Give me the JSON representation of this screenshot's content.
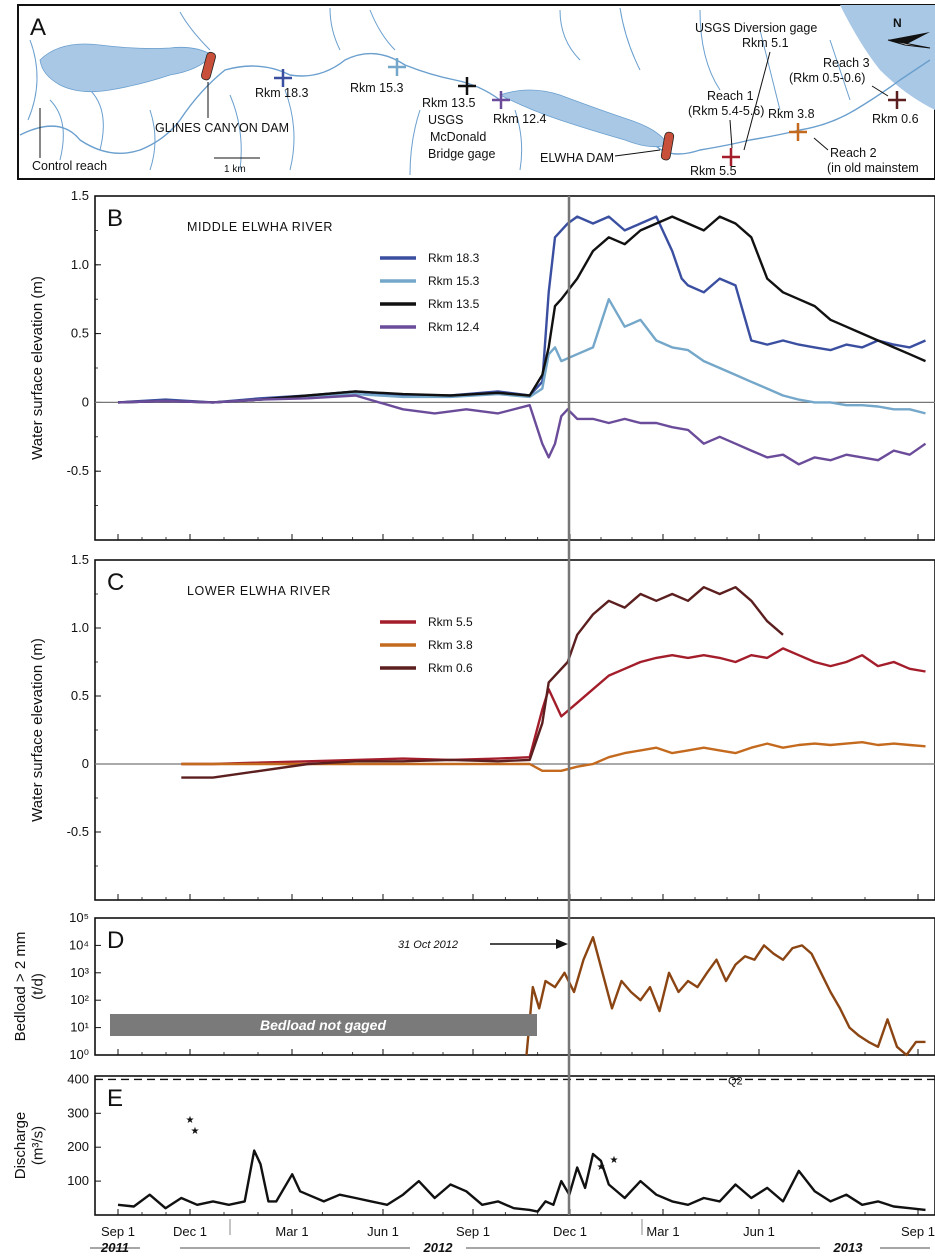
{
  "map": {
    "letter": "A",
    "north": "N",
    "scale_label": "1 km",
    "labels": {
      "glines": "GLINES CANYON DAM",
      "elwha_dam": "ELWHA DAM",
      "control": "Control reach",
      "usgs_mcdonald": [
        "USGS",
        "McDonald",
        "Bridge gage"
      ],
      "usgs_diversion": [
        "USGS Diversion gage",
        "Rkm 5.1"
      ],
      "reach1": [
        "Reach 1",
        "(Rkm 5.4-5.6)"
      ],
      "reach2": [
        "Reach 2",
        "(in old mainstem"
      ],
      "reach3": [
        "Reach 3",
        "(Rkm 0.5-0.6)"
      ],
      "sites": [
        "Rkm 18.3",
        "Rkm 15.3",
        "Rkm 13.5",
        "Rkm 12.4",
        "Rkm 5.5",
        "Rkm 3.8",
        "Rkm 0.6"
      ]
    },
    "colors": {
      "water": "#a9c8e6",
      "river": "#6a9fce",
      "dam": "#c8503a"
    }
  },
  "x_axis": {
    "ticks": [
      "Sep 1",
      "Dec 1",
      "Mar 1",
      "Jun 1",
      "Sep 1",
      "Dec 1",
      "Mar 1",
      "Jun 1",
      "Sep 1"
    ],
    "years": [
      "2011",
      "2012",
      "2013"
    ]
  },
  "chart_data": [
    {
      "panel": "B",
      "type": "line",
      "title": "MIDDLE ELWHA RIVER",
      "ylabel": "Water surface elevation (m)",
      "ylim": [
        -1.0,
        1.5
      ],
      "yticks": [
        "1.5",
        "1.0",
        "0.5",
        "0",
        "-0.5"
      ],
      "legend": "top-center",
      "series": [
        {
          "name": "Rkm 18.3",
          "color": "#3b4fa1",
          "x": [
            0,
            30,
            60,
            90,
            120,
            150,
            180,
            210,
            240,
            260,
            268,
            272,
            276,
            280,
            284,
            290,
            300,
            310,
            320,
            330,
            340,
            350,
            356,
            360,
            370,
            380,
            390,
            400,
            410,
            420,
            430,
            440,
            450,
            460,
            470,
            480,
            490,
            500,
            510
          ],
          "y": [
            0.0,
            0.02,
            0.0,
            0.03,
            0.05,
            0.08,
            0.05,
            0.05,
            0.08,
            0.05,
            0.15,
            0.8,
            1.2,
            1.25,
            1.3,
            1.35,
            1.3,
            1.35,
            1.25,
            1.3,
            1.35,
            1.1,
            0.9,
            0.85,
            0.8,
            0.9,
            0.85,
            0.45,
            0.42,
            0.45,
            0.42,
            0.4,
            0.38,
            0.42,
            0.4,
            0.45,
            0.42,
            0.4,
            0.45
          ]
        },
        {
          "name": "Rkm 15.3",
          "color": "#74a7c9",
          "x": [
            0,
            30,
            60,
            90,
            120,
            150,
            180,
            210,
            240,
            260,
            268,
            272,
            276,
            280,
            290,
            300,
            310,
            320,
            330,
            340,
            350,
            360,
            370,
            380,
            390,
            400,
            410,
            420,
            430,
            440,
            450,
            460,
            470,
            480,
            490,
            500,
            510
          ],
          "y": [
            0.0,
            0.01,
            0.0,
            0.02,
            0.04,
            0.06,
            0.04,
            0.04,
            0.06,
            0.04,
            0.1,
            0.35,
            0.4,
            0.3,
            0.35,
            0.4,
            0.75,
            0.55,
            0.6,
            0.45,
            0.4,
            0.38,
            0.3,
            0.25,
            0.2,
            0.15,
            0.1,
            0.05,
            0.02,
            0.0,
            0.0,
            -0.02,
            -0.02,
            -0.03,
            -0.05,
            -0.05,
            -0.08
          ]
        },
        {
          "name": "Rkm 13.5",
          "color": "#111111",
          "x": [
            0,
            30,
            60,
            90,
            120,
            150,
            180,
            210,
            240,
            260,
            268,
            272,
            276,
            280,
            290,
            300,
            310,
            320,
            330,
            340,
            350,
            360,
            370,
            380,
            390,
            400,
            410,
            420,
            430,
            440,
            450,
            460,
            470,
            480,
            490,
            500,
            510
          ],
          "y": [
            0.0,
            0.01,
            0.0,
            0.02,
            0.05,
            0.08,
            0.06,
            0.05,
            0.07,
            0.05,
            0.2,
            0.4,
            0.7,
            0.75,
            0.9,
            1.1,
            1.2,
            1.15,
            1.25,
            1.3,
            1.35,
            1.3,
            1.25,
            1.35,
            1.3,
            1.2,
            0.9,
            0.8,
            0.75,
            0.7,
            0.6,
            0.55,
            0.5,
            0.45,
            0.4,
            0.35,
            0.3
          ]
        },
        {
          "name": "Rkm 12.4",
          "color": "#6b4c9a",
          "x": [
            0,
            30,
            60,
            90,
            120,
            150,
            180,
            200,
            220,
            240,
            260,
            268,
            272,
            276,
            280,
            284,
            290,
            300,
            310,
            320,
            330,
            340,
            350,
            360,
            370,
            380,
            390,
            400,
            410,
            420,
            430,
            440,
            450,
            460,
            470,
            480,
            490,
            500,
            510
          ],
          "y": [
            0.0,
            0.01,
            0.0,
            0.02,
            0.03,
            0.05,
            -0.05,
            -0.08,
            -0.05,
            -0.08,
            -0.02,
            -0.3,
            -0.4,
            -0.3,
            -0.1,
            -0.05,
            -0.12,
            -0.12,
            -0.15,
            -0.12,
            -0.15,
            -0.15,
            -0.18,
            -0.2,
            -0.3,
            -0.25,
            -0.3,
            -0.35,
            -0.4,
            -0.38,
            -0.45,
            -0.4,
            -0.42,
            -0.38,
            -0.4,
            -0.42,
            -0.35,
            -0.38,
            -0.3
          ]
        }
      ]
    },
    {
      "panel": "C",
      "type": "line",
      "title": "LOWER ELWHA RIVER",
      "ylabel": "Water surface elevation (m)",
      "ylim": [
        -1.0,
        1.5
      ],
      "yticks": [
        "1.5",
        "1.0",
        "0.5",
        "0",
        "-0.5"
      ],
      "legend": "top-center",
      "series": [
        {
          "name": "Rkm 5.5",
          "color": "#a31d2b",
          "x": [
            40,
            60,
            90,
            120,
            150,
            180,
            210,
            240,
            260,
            268,
            272,
            280,
            290,
            300,
            310,
            320,
            330,
            340,
            350,
            360,
            370,
            380,
            390,
            400,
            410,
            420,
            430,
            440,
            450,
            460,
            470,
            480,
            490,
            500,
            510
          ],
          "y": [
            0.0,
            0.0,
            0.01,
            0.02,
            0.03,
            0.04,
            0.03,
            0.04,
            0.05,
            0.4,
            0.55,
            0.35,
            0.45,
            0.55,
            0.65,
            0.7,
            0.75,
            0.78,
            0.8,
            0.78,
            0.8,
            0.78,
            0.75,
            0.8,
            0.78,
            0.85,
            0.8,
            0.75,
            0.72,
            0.75,
            0.8,
            0.72,
            0.75,
            0.7,
            0.68
          ]
        },
        {
          "name": "Rkm 3.8",
          "color": "#c46a1e",
          "x": [
            40,
            60,
            90,
            120,
            150,
            180,
            210,
            240,
            260,
            268,
            276,
            280,
            290,
            300,
            310,
            320,
            330,
            340,
            350,
            360,
            370,
            380,
            390,
            400,
            410,
            420,
            430,
            440,
            450,
            460,
            470,
            480,
            490,
            500,
            510
          ],
          "y": [
            0.0,
            0.0,
            0.0,
            0.0,
            0.0,
            0.0,
            0.0,
            0.0,
            0.0,
            -0.05,
            -0.05,
            -0.05,
            -0.02,
            0.0,
            0.05,
            0.08,
            0.1,
            0.12,
            0.08,
            0.1,
            0.12,
            0.1,
            0.08,
            0.12,
            0.15,
            0.12,
            0.14,
            0.15,
            0.14,
            0.15,
            0.16,
            0.14,
            0.15,
            0.14,
            0.13
          ]
        },
        {
          "name": "Rkm 0.6",
          "color": "#5c1f1f",
          "x": [
            40,
            60,
            90,
            120,
            150,
            180,
            210,
            240,
            260,
            268,
            272,
            284,
            290,
            300,
            310,
            320,
            330,
            340,
            350,
            360,
            370,
            380,
            390,
            400,
            410,
            420
          ],
          "y": [
            -0.1,
            -0.1,
            -0.05,
            0.0,
            0.02,
            0.02,
            0.03,
            0.02,
            0.03,
            0.3,
            0.6,
            0.75,
            0.95,
            1.1,
            1.2,
            1.15,
            1.25,
            1.2,
            1.25,
            1.2,
            1.3,
            1.25,
            1.3,
            1.2,
            1.05,
            0.95
          ]
        }
      ]
    },
    {
      "panel": "D",
      "type": "line",
      "ylabel": "Bedload > 2 mm (t/d)",
      "yscale": "log",
      "ylim": [
        1,
        100000
      ],
      "yticks": [
        "10⁵",
        "10⁴",
        "10³",
        "10²",
        "10¹",
        "10⁰"
      ],
      "annotations": {
        "arrow": "31 Oct 2012",
        "note": "Bedload not gaged"
      },
      "series": [
        {
          "name": "Bedload",
          "color": "#8b4513",
          "x": [
            258,
            262,
            266,
            270,
            276,
            282,
            288,
            294,
            300,
            306,
            312,
            318,
            324,
            330,
            336,
            342,
            348,
            354,
            360,
            366,
            372,
            378,
            384,
            390,
            396,
            402,
            408,
            414,
            420,
            426,
            432,
            438,
            444,
            450,
            456,
            462,
            468,
            474,
            480,
            486,
            492,
            498,
            504,
            510
          ],
          "y": [
            1,
            300,
            50,
            500,
            300,
            1000,
            200,
            3000,
            20000,
            1000,
            50,
            500,
            200,
            100,
            300,
            40,
            1000,
            200,
            500,
            300,
            1000,
            3000,
            500,
            2000,
            4000,
            3000,
            10000,
            5000,
            3000,
            8000,
            10000,
            5000,
            1000,
            200,
            50,
            10,
            5,
            3,
            2,
            20,
            2,
            1,
            3,
            3
          ]
        }
      ]
    },
    {
      "panel": "E",
      "type": "line",
      "ylabel": "Discharge (m³/s)",
      "ylim": [
        0,
        410
      ],
      "yticks": [
        "400",
        "300",
        "200",
        "100"
      ],
      "reference_line": {
        "value": 400,
        "label": "Q2"
      },
      "annotations": {
        "stars": "★"
      },
      "series": [
        {
          "name": "Discharge",
          "color": "#111111",
          "x": [
            0,
            10,
            20,
            30,
            40,
            50,
            60,
            70,
            80,
            86,
            90,
            95,
            100,
            110,
            115,
            120,
            130,
            140,
            150,
            160,
            170,
            180,
            190,
            200,
            210,
            220,
            230,
            240,
            250,
            260,
            265,
            270,
            275,
            280,
            285,
            290,
            295,
            300,
            305,
            310,
            320,
            330,
            340,
            350,
            360,
            370,
            380,
            390,
            400,
            410,
            420,
            430,
            440,
            450,
            460,
            470,
            480,
            490,
            500,
            510
          ],
          "y": [
            30,
            25,
            60,
            20,
            50,
            30,
            40,
            30,
            40,
            190,
            150,
            40,
            40,
            120,
            70,
            60,
            40,
            60,
            50,
            40,
            30,
            60,
            100,
            50,
            90,
            70,
            30,
            40,
            20,
            15,
            10,
            40,
            30,
            100,
            60,
            140,
            80,
            180,
            160,
            90,
            50,
            100,
            60,
            40,
            30,
            50,
            40,
            90,
            50,
            80,
            40,
            130,
            70,
            40,
            60,
            30,
            40,
            25,
            20,
            15
          ]
        }
      ]
    }
  ]
}
